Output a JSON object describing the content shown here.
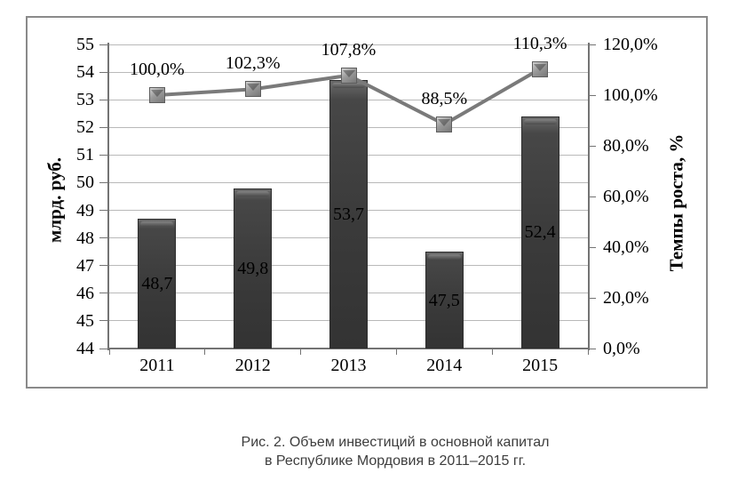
{
  "colors": {
    "bar_fill": "#3a3a3a",
    "bar_border": "#2c2c2c",
    "line": "#7a7a7a",
    "marker_fill": "#9a9a9a",
    "marker_border": "#5e5e5e",
    "gridline": "#b9b9b9",
    "axis": "#737373",
    "frame_border": "#8a8a8a",
    "label_text": "#000000",
    "caption_text": "#3d3d3d"
  },
  "chart_data": {
    "type": "combo",
    "categories": [
      "2011",
      "2012",
      "2013",
      "2014",
      "2015"
    ],
    "series": [
      {
        "name": "Объем инвестиций в основной капитал",
        "type": "bar",
        "axis": "left",
        "values": [
          48.7,
          49.8,
          53.7,
          47.5,
          52.4
        ],
        "labels": [
          "48,7",
          "49,8",
          "53,7",
          "47,5",
          "52,4"
        ]
      },
      {
        "name": "Темпы роста",
        "type": "line",
        "axis": "right",
        "values": [
          100.0,
          102.3,
          107.8,
          88.5,
          110.3
        ],
        "labels": [
          "100,0%",
          "102,3%",
          "107,8%",
          "88,5%",
          "110,3%"
        ]
      }
    ],
    "left_axis": {
      "title": "млрд. руб.",
      "min": 44,
      "max": 55,
      "step": 1,
      "tick_labels": [
        "55",
        "54",
        "53",
        "52",
        "51",
        "50",
        "49",
        "48",
        "47",
        "46",
        "45",
        "44"
      ]
    },
    "right_axis": {
      "title": "Темпы роста, %",
      "min": 0,
      "max": 120,
      "step": 20,
      "tick_labels": [
        "120,0%",
        "100,0%",
        "80,0%",
        "60,0%",
        "40,0%",
        "20,0%",
        "0,0%"
      ]
    },
    "grid": true,
    "legend": "none"
  },
  "caption": {
    "line1": "Рис. 2. Объем инвестиций в основной капитал",
    "line2": "в Республике Мордовия в 2011–2015 гг."
  }
}
